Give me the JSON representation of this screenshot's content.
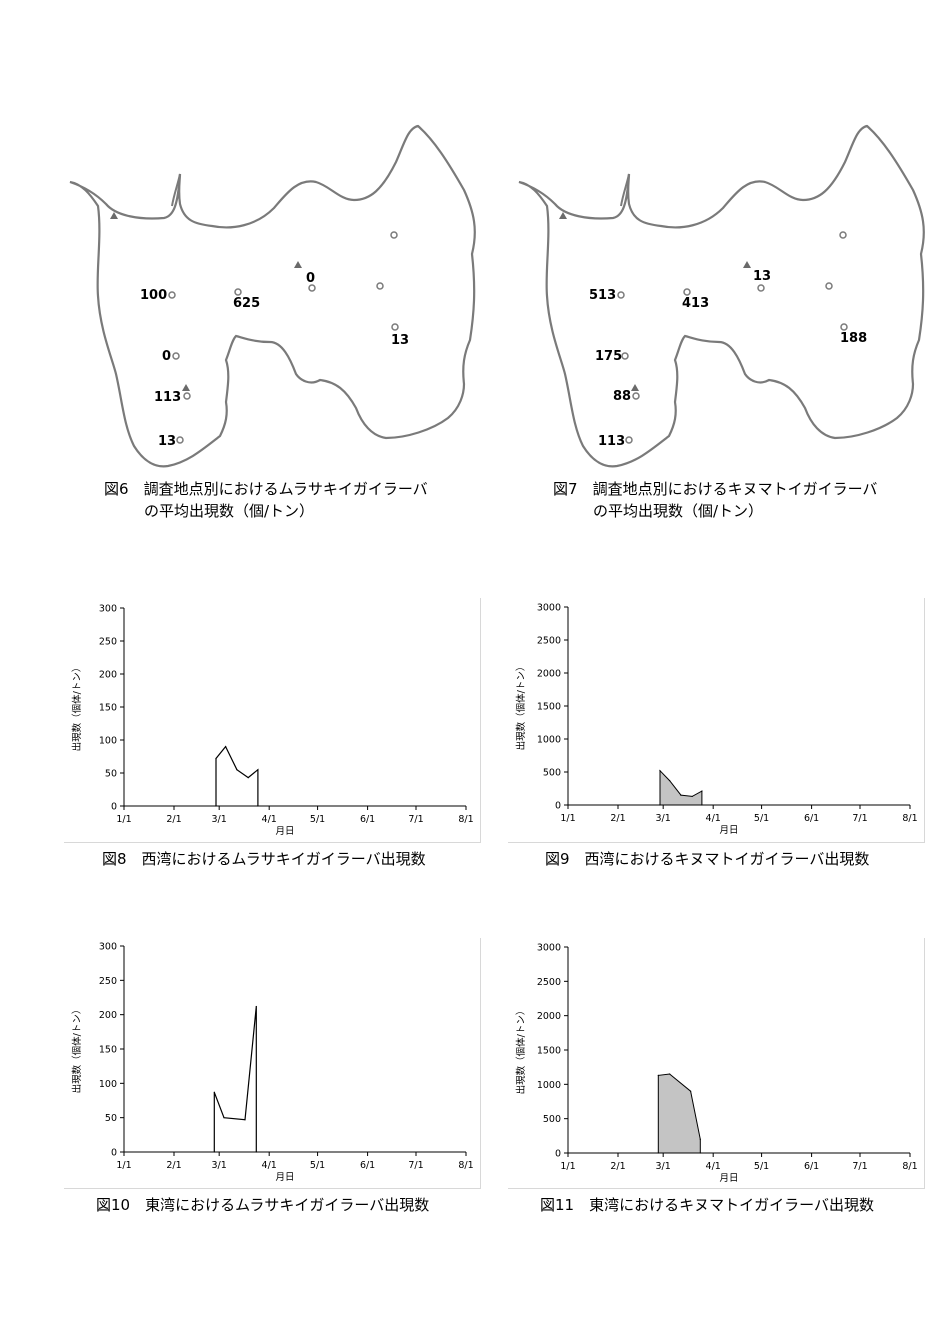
{
  "maps": [
    {
      "caption_num": "図6",
      "caption_line1": "調査地点別におけるムラサキイガイラーバ",
      "caption_line2": "の平均出現数（個/トン）",
      "labels": [
        "100",
        "625",
        "0",
        "0",
        "113",
        "13",
        "13"
      ]
    },
    {
      "caption_num": "図7",
      "caption_line1": "調査地点別におけるキヌマトイガイラーバ",
      "caption_line2": "の平均出現数（個/トン）",
      "labels": [
        "513",
        "413",
        "13",
        "175",
        "88",
        "113",
        "188"
      ]
    }
  ],
  "chart_data": [
    {
      "type": "line",
      "caption": "図8　西湾におけるムラサキイガイラーバ出現数",
      "xlabel": "月日",
      "ylabel": "出現数（個体/トン）",
      "ylim": [
        0,
        300
      ],
      "yticks": [
        "0",
        "50",
        "100",
        "150",
        "200",
        "250",
        "300"
      ],
      "xticks": [
        "1/1",
        "2/1",
        "3/1",
        "4/1",
        "5/1",
        "6/1",
        "7/1",
        "8/1"
      ],
      "fill": false,
      "x": [
        57,
        57,
        63,
        70,
        77,
        83,
        83
      ],
      "y": [
        0,
        72,
        90,
        55,
        43,
        55,
        0
      ]
    },
    {
      "type": "area",
      "caption": "図9　西湾におけるキヌマトイガイラーバ出現数",
      "xlabel": "月日",
      "ylabel": "出現数（個体/トン）",
      "ylim": [
        0,
        3000
      ],
      "yticks": [
        "0",
        "500",
        "1000",
        "1500",
        "2000",
        "2500",
        "3000"
      ],
      "xticks": [
        "1/1",
        "2/1",
        "3/1",
        "4/1",
        "5/1",
        "6/1",
        "7/1",
        "8/1"
      ],
      "fill": true,
      "x": [
        57,
        57,
        63,
        70,
        77,
        83,
        83
      ],
      "y": [
        0,
        520,
        370,
        150,
        130,
        210,
        0
      ]
    },
    {
      "type": "line",
      "caption": "図10　東湾におけるムラサキイガイラーバ出現数",
      "xlabel": "月日",
      "ylabel": "出現数（個体/トン）",
      "ylim": [
        0,
        300
      ],
      "yticks": [
        "0",
        "50",
        "100",
        "150",
        "200",
        "250",
        "300"
      ],
      "xticks": [
        "1/1",
        "2/1",
        "3/1",
        "4/1",
        "5/1",
        "6/1",
        "7/1",
        "8/1"
      ],
      "fill": false,
      "x": [
        56,
        56,
        62,
        75,
        82,
        82
      ],
      "y": [
        0,
        87,
        50,
        47,
        212,
        0
      ]
    },
    {
      "type": "area",
      "caption": "図11　東湾におけるキヌマトイガイラーバ出現数",
      "xlabel": "月日",
      "ylabel": "出現数（個体/トン）",
      "ylim": [
        0,
        3000
      ],
      "yticks": [
        "0",
        "500",
        "1000",
        "1500",
        "2000",
        "2500",
        "3000"
      ],
      "xticks": [
        "1/1",
        "2/1",
        "3/1",
        "4/1",
        "5/1",
        "6/1",
        "7/1",
        "8/1"
      ],
      "fill": true,
      "x": [
        56,
        56,
        63,
        76,
        82,
        82
      ],
      "y": [
        0,
        1130,
        1150,
        900,
        200,
        0
      ]
    }
  ]
}
